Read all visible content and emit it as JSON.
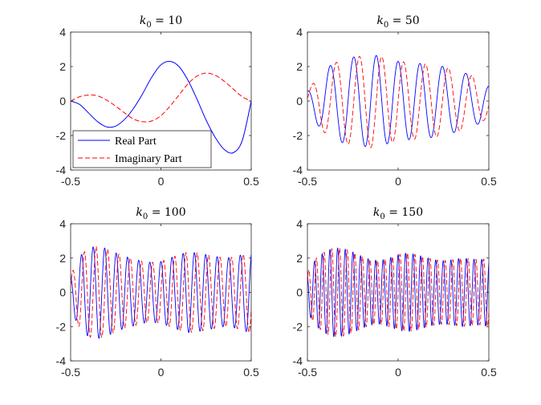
{
  "chart_data": [
    {
      "type": "line",
      "title": "k_0 = 10",
      "title_var": "k",
      "title_sub": "0",
      "title_rest": " = 10",
      "k0": 10,
      "xlim": [
        -0.5,
        0.5
      ],
      "ylim": [
        -4,
        4
      ],
      "xticks": [
        -0.5,
        0,
        0.5
      ],
      "xtick_labels": [
        "-0.5",
        "0",
        "0.5"
      ],
      "yticks": [
        -4,
        -2,
        0,
        2,
        4
      ],
      "ytick_labels": [
        "-4",
        "-2",
        "0",
        "2",
        "4"
      ],
      "legend": {
        "placement": "bottom-left",
        "entries": [
          "Real Part",
          "Imaginary Part"
        ]
      },
      "series": [
        {
          "name": "Real Part",
          "color": "#0000ff",
          "style": "solid",
          "x": [
            -0.5,
            -0.45,
            -0.4,
            -0.35,
            -0.3,
            -0.25,
            -0.2,
            -0.15,
            -0.1,
            -0.05,
            0,
            0.05,
            0.1,
            0.15,
            0.2,
            0.25,
            0.3,
            0.35,
            0.4,
            0.45,
            0.5
          ],
          "values": [
            0,
            -0.2,
            -0.7,
            -1.2,
            -1.5,
            -1.45,
            -1.05,
            -0.4,
            0.45,
            1.4,
            2.1,
            2.3,
            2.0,
            1.2,
            0.1,
            -1.1,
            -2.1,
            -2.8,
            -3.0,
            -2.3,
            0
          ]
        },
        {
          "name": "Imaginary Part",
          "color": "#ff0000",
          "style": "dashed",
          "x": [
            -0.5,
            -0.45,
            -0.4,
            -0.35,
            -0.3,
            -0.25,
            -0.2,
            -0.15,
            -0.1,
            -0.05,
            0,
            0.05,
            0.1,
            0.15,
            0.2,
            0.25,
            0.3,
            0.35,
            0.4,
            0.45,
            0.5
          ],
          "values": [
            0,
            0.25,
            0.35,
            0.3,
            0.05,
            -0.3,
            -0.7,
            -1.05,
            -1.2,
            -1.15,
            -0.85,
            -0.3,
            0.35,
            1.0,
            1.45,
            1.62,
            1.5,
            1.15,
            0.7,
            0.25,
            0
          ]
        }
      ]
    },
    {
      "type": "line",
      "title": "k_0 = 50",
      "title_var": "k",
      "title_sub": "0",
      "title_rest": " = 50",
      "k0": 50,
      "xlim": [
        -0.5,
        0.5
      ],
      "ylim": [
        -4,
        4
      ],
      "xticks": [
        -0.5,
        0,
        0.5
      ],
      "xtick_labels": [
        "-0.5",
        "0",
        "0.5"
      ],
      "yticks": [
        -4,
        -2,
        0,
        2,
        4
      ],
      "ytick_labels": [
        "-4",
        "-2",
        "0",
        "2",
        "4"
      ],
      "envelope_x": [
        -0.5,
        -0.45,
        -0.4,
        -0.35,
        -0.3,
        -0.25,
        -0.2,
        -0.15,
        -0.1,
        -0.05,
        0,
        0.05,
        0.1,
        0.15,
        0.2,
        0.25,
        0.3,
        0.35,
        0.4,
        0.45,
        0.5
      ],
      "envelope_values": [
        0.6,
        1.3,
        1.9,
        2.2,
        2.45,
        2.55,
        2.6,
        2.7,
        2.6,
        2.45,
        2.3,
        2.25,
        2.2,
        2.15,
        2.1,
        2.0,
        1.85,
        1.7,
        1.5,
        1.3,
        0.9
      ],
      "series": [
        {
          "name": "Real Part",
          "color": "#0000ff",
          "style": "solid"
        },
        {
          "name": "Imaginary Part",
          "color": "#ff0000",
          "style": "dashed"
        }
      ]
    },
    {
      "type": "line",
      "title": "k_0 = 100",
      "title_var": "k",
      "title_sub": "0",
      "title_rest": " = 100",
      "k0": 100,
      "xlim": [
        -0.5,
        0.5
      ],
      "ylim": [
        -4,
        4
      ],
      "xticks": [
        -0.5,
        0,
        0.5
      ],
      "xtick_labels": [
        "-0.5",
        "0",
        "0.5"
      ],
      "yticks": [
        -4,
        -2,
        0,
        2,
        4
      ],
      "ytick_labels": [
        "-4",
        "-2",
        "0",
        "2",
        "4"
      ],
      "envelope_x": [
        -0.5,
        -0.45,
        -0.4,
        -0.35,
        -0.3,
        -0.25,
        -0.2,
        -0.15,
        -0.1,
        -0.05,
        0,
        0.05,
        0.1,
        0.15,
        0.2,
        0.25,
        0.3,
        0.35,
        0.4,
        0.45,
        0.5
      ],
      "envelope_values": [
        1.0,
        2.1,
        2.6,
        2.7,
        2.55,
        2.3,
        2.1,
        1.95,
        1.8,
        1.75,
        1.8,
        2.0,
        2.2,
        2.35,
        2.3,
        2.2,
        2.1,
        2.0,
        2.05,
        2.2,
        2.4
      ],
      "series": [
        {
          "name": "Real Part",
          "color": "#0000ff",
          "style": "solid"
        },
        {
          "name": "Imaginary Part",
          "color": "#ff0000",
          "style": "dashed"
        }
      ]
    },
    {
      "type": "line",
      "title": "k_0 = 150",
      "title_var": "k",
      "title_sub": "0",
      "title_rest": " = 150",
      "k0": 150,
      "xlim": [
        -0.5,
        0.5
      ],
      "ylim": [
        -4,
        4
      ],
      "xticks": [
        -0.5,
        0,
        0.5
      ],
      "xtick_labels": [
        "-0.5",
        "0",
        "0.5"
      ],
      "yticks": [
        -4,
        -2,
        0,
        2,
        4
      ],
      "ytick_labels": [
        "-4",
        "-2",
        "0",
        "2",
        "4"
      ],
      "envelope_x": [
        -0.5,
        -0.45,
        -0.4,
        -0.35,
        -0.3,
        -0.25,
        -0.2,
        -0.15,
        -0.1,
        -0.05,
        0,
        0.05,
        0.1,
        0.15,
        0.2,
        0.25,
        0.3,
        0.35,
        0.4,
        0.45,
        0.5
      ],
      "envelope_values": [
        1.2,
        2.0,
        2.4,
        2.6,
        2.55,
        2.35,
        2.1,
        1.9,
        1.85,
        2.0,
        2.2,
        2.3,
        2.2,
        2.05,
        1.9,
        1.85,
        1.9,
        2.0,
        1.95,
        1.9,
        2.0
      ],
      "series": [
        {
          "name": "Real Part",
          "color": "#0000ff",
          "style": "solid"
        },
        {
          "name": "Imaginary Part",
          "color": "#ff0000",
          "style": "dashed"
        }
      ]
    }
  ]
}
